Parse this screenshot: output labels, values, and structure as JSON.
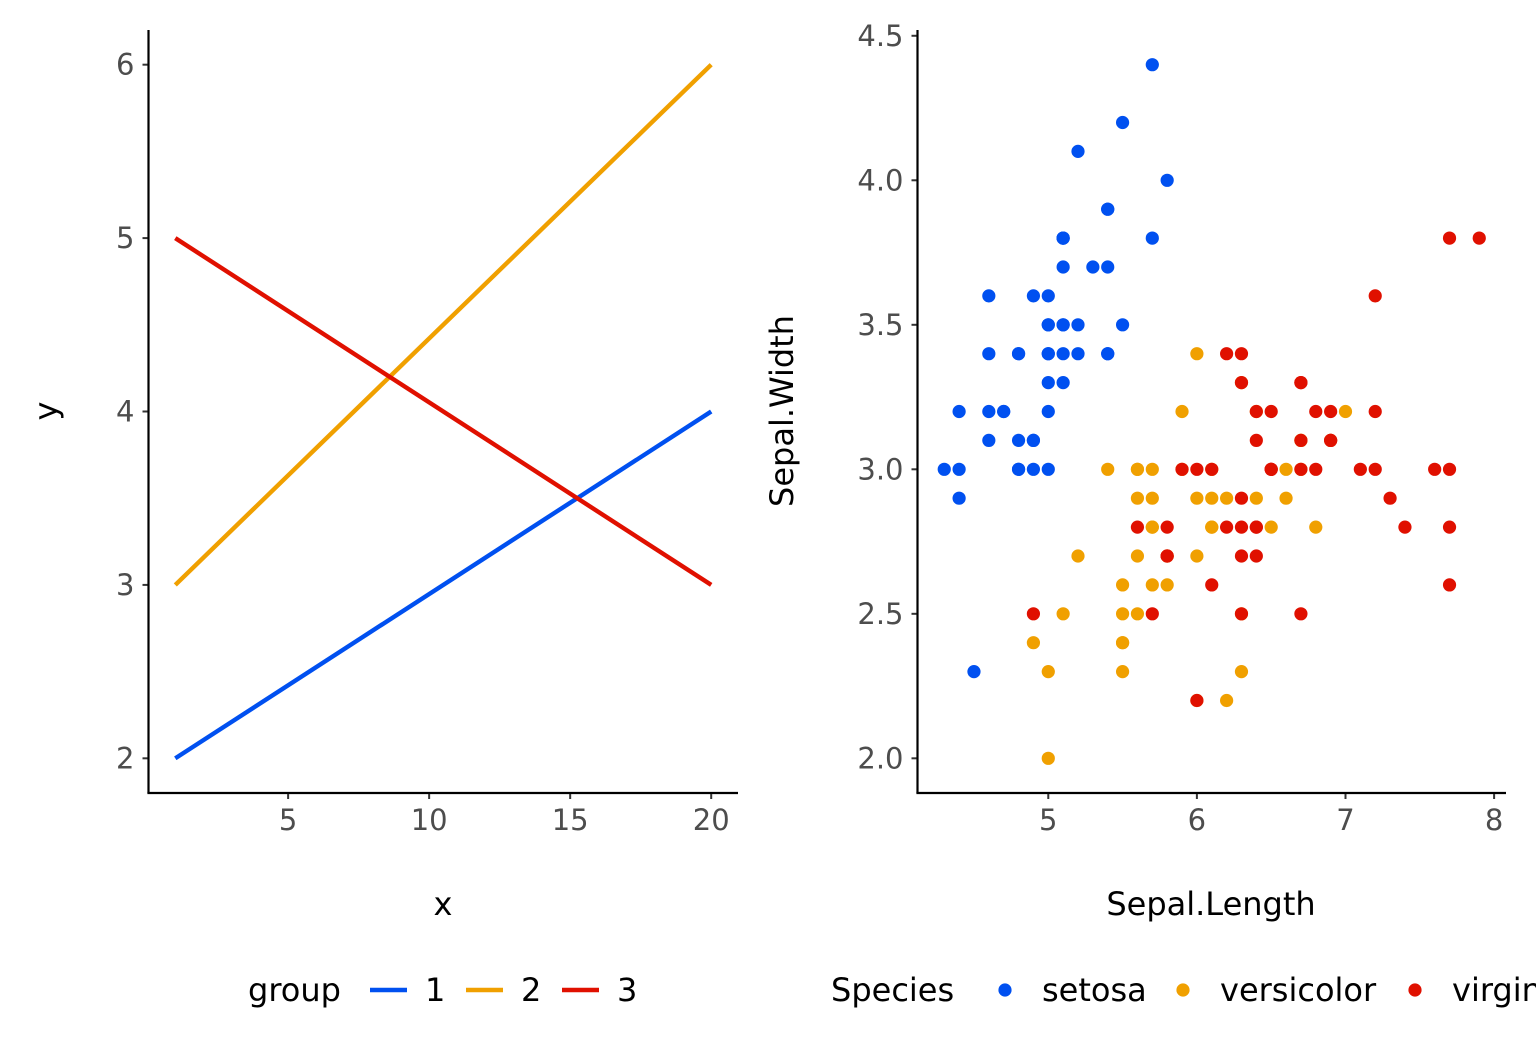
{
  "chart_data": [
    {
      "type": "line",
      "xlabel": "x",
      "ylabel": "y",
      "xlim": [
        0.05,
        20.95
      ],
      "ylim": [
        1.8,
        6.2
      ],
      "xticks": [
        5,
        10,
        15,
        20
      ],
      "yticks": [
        2,
        3,
        4,
        5,
        6
      ],
      "xtick_labels": [
        "5",
        "10",
        "15",
        "20"
      ],
      "ytick_labels": [
        "2",
        "3",
        "4",
        "5",
        "6"
      ],
      "grid": false,
      "legend_title": "group",
      "legend_position": "bottom",
      "series": [
        {
          "name": "1",
          "color": "#0050F0",
          "x": [
            1,
            20
          ],
          "y": [
            2,
            4
          ]
        },
        {
          "name": "2",
          "color": "#F0A000",
          "x": [
            1,
            20
          ],
          "y": [
            3,
            6
          ]
        },
        {
          "name": "3",
          "color": "#E01000",
          "x": [
            1,
            20
          ],
          "y": [
            5,
            3
          ]
        }
      ]
    },
    {
      "type": "scatter",
      "xlabel": "Sepal.Length",
      "ylabel": "Sepal.Width",
      "xlim": [
        4.12,
        8.08
      ],
      "ylim": [
        1.88,
        4.52
      ],
      "xticks": [
        5,
        6,
        7,
        8
      ],
      "yticks": [
        2.0,
        2.5,
        3.0,
        3.5,
        4.0,
        4.5
      ],
      "xtick_labels": [
        "5",
        "6",
        "7",
        "8"
      ],
      "ytick_labels": [
        "2.0",
        "2.5",
        "3.0",
        "3.5",
        "4.0",
        "4.5"
      ],
      "grid": false,
      "legend_title": "Species",
      "legend_position": "bottom",
      "series": [
        {
          "name": "setosa",
          "color": "#0050F0",
          "points": [
            [
              5.1,
              3.5
            ],
            [
              4.9,
              3.0
            ],
            [
              4.7,
              3.2
            ],
            [
              4.6,
              3.1
            ],
            [
              5.0,
              3.6
            ],
            [
              5.4,
              3.9
            ],
            [
              4.6,
              3.4
            ],
            [
              5.0,
              3.4
            ],
            [
              4.4,
              2.9
            ],
            [
              4.9,
              3.1
            ],
            [
              5.4,
              3.7
            ],
            [
              4.8,
              3.4
            ],
            [
              4.8,
              3.0
            ],
            [
              4.3,
              3.0
            ],
            [
              5.8,
              4.0
            ],
            [
              5.7,
              4.4
            ],
            [
              5.4,
              3.9
            ],
            [
              5.1,
              3.5
            ],
            [
              5.7,
              3.8
            ],
            [
              5.1,
              3.8
            ],
            [
              5.4,
              3.4
            ],
            [
              5.1,
              3.7
            ],
            [
              4.6,
              3.6
            ],
            [
              5.1,
              3.3
            ],
            [
              4.8,
              3.4
            ],
            [
              5.0,
              3.0
            ],
            [
              5.0,
              3.4
            ],
            [
              5.2,
              3.5
            ],
            [
              5.2,
              3.4
            ],
            [
              4.7,
              3.2
            ],
            [
              4.8,
              3.1
            ],
            [
              5.4,
              3.4
            ],
            [
              5.2,
              4.1
            ],
            [
              5.5,
              4.2
            ],
            [
              4.9,
              3.1
            ],
            [
              5.0,
              3.2
            ],
            [
              5.5,
              3.5
            ],
            [
              4.9,
              3.6
            ],
            [
              4.4,
              3.0
            ],
            [
              5.1,
              3.4
            ],
            [
              5.0,
              3.5
            ],
            [
              4.5,
              2.3
            ],
            [
              4.4,
              3.2
            ],
            [
              5.0,
              3.5
            ],
            [
              5.1,
              3.8
            ],
            [
              4.8,
              3.0
            ],
            [
              5.1,
              3.8
            ],
            [
              4.6,
              3.2
            ],
            [
              5.3,
              3.7
            ],
            [
              5.0,
              3.3
            ]
          ]
        },
        {
          "name": "versicolor",
          "color": "#F0A000",
          "points": [
            [
              7.0,
              3.2
            ],
            [
              6.4,
              3.2
            ],
            [
              6.9,
              3.1
            ],
            [
              5.5,
              2.3
            ],
            [
              6.5,
              2.8
            ],
            [
              5.7,
              2.8
            ],
            [
              6.3,
              3.3
            ],
            [
              4.9,
              2.4
            ],
            [
              6.6,
              2.9
            ],
            [
              5.2,
              2.7
            ],
            [
              5.0,
              2.0
            ],
            [
              5.9,
              3.0
            ],
            [
              6.0,
              2.2
            ],
            [
              6.1,
              2.9
            ],
            [
              5.6,
              2.9
            ],
            [
              6.7,
              3.1
            ],
            [
              5.6,
              3.0
            ],
            [
              5.8,
              2.7
            ],
            [
              6.2,
              2.2
            ],
            [
              5.6,
              2.5
            ],
            [
              5.9,
              3.2
            ],
            [
              6.1,
              2.8
            ],
            [
              6.3,
              2.5
            ],
            [
              6.1,
              2.8
            ],
            [
              6.4,
              2.9
            ],
            [
              6.6,
              3.0
            ],
            [
              6.8,
              2.8
            ],
            [
              6.7,
              3.0
            ],
            [
              6.0,
              2.9
            ],
            [
              5.7,
              2.6
            ],
            [
              5.5,
              2.4
            ],
            [
              5.5,
              2.4
            ],
            [
              5.8,
              2.7
            ],
            [
              6.0,
              2.7
            ],
            [
              5.4,
              3.0
            ],
            [
              6.0,
              3.4
            ],
            [
              6.7,
              3.1
            ],
            [
              6.3,
              2.3
            ],
            [
              5.6,
              3.0
            ],
            [
              5.5,
              2.5
            ],
            [
              5.5,
              2.6
            ],
            [
              6.1,
              3.0
            ],
            [
              5.8,
              2.6
            ],
            [
              5.0,
              2.3
            ],
            [
              5.6,
              2.7
            ],
            [
              5.7,
              3.0
            ],
            [
              5.7,
              2.9
            ],
            [
              6.2,
              2.9
            ],
            [
              5.1,
              2.5
            ],
            [
              5.7,
              2.8
            ]
          ]
        },
        {
          "name": "virginica",
          "color": "#E01000",
          "points": [
            [
              6.3,
              3.3
            ],
            [
              5.8,
              2.7
            ],
            [
              7.1,
              3.0
            ],
            [
              6.3,
              2.9
            ],
            [
              6.5,
              3.0
            ],
            [
              7.6,
              3.0
            ],
            [
              4.9,
              2.5
            ],
            [
              7.3,
              2.9
            ],
            [
              6.7,
              2.5
            ],
            [
              7.2,
              3.6
            ],
            [
              6.5,
              3.2
            ],
            [
              6.4,
              2.7
            ],
            [
              6.8,
              3.0
            ],
            [
              5.7,
              2.5
            ],
            [
              5.8,
              2.8
            ],
            [
              6.4,
              3.2
            ],
            [
              6.5,
              3.0
            ],
            [
              7.7,
              3.8
            ],
            [
              7.7,
              2.6
            ],
            [
              6.0,
              2.2
            ],
            [
              6.9,
              3.2
            ],
            [
              5.6,
              2.8
            ],
            [
              7.7,
              2.8
            ],
            [
              6.3,
              2.7
            ],
            [
              6.7,
              3.3
            ],
            [
              7.2,
              3.2
            ],
            [
              6.2,
              2.8
            ],
            [
              6.1,
              3.0
            ],
            [
              6.4,
              2.8
            ],
            [
              7.2,
              3.0
            ],
            [
              7.4,
              2.8
            ],
            [
              7.9,
              3.8
            ],
            [
              6.4,
              2.8
            ],
            [
              6.3,
              2.8
            ],
            [
              6.1,
              2.6
            ],
            [
              7.7,
              3.0
            ],
            [
              6.3,
              3.4
            ],
            [
              6.4,
              3.1
            ],
            [
              6.0,
              3.0
            ],
            [
              6.9,
              3.1
            ],
            [
              6.7,
              3.1
            ],
            [
              6.9,
              3.1
            ],
            [
              5.8,
              2.7
            ],
            [
              6.8,
              3.2
            ],
            [
              6.7,
              3.3
            ],
            [
              6.7,
              3.0
            ],
            [
              6.3,
              2.5
            ],
            [
              6.5,
              3.0
            ],
            [
              6.2,
              3.4
            ],
            [
              5.9,
              3.0
            ]
          ]
        }
      ]
    }
  ]
}
